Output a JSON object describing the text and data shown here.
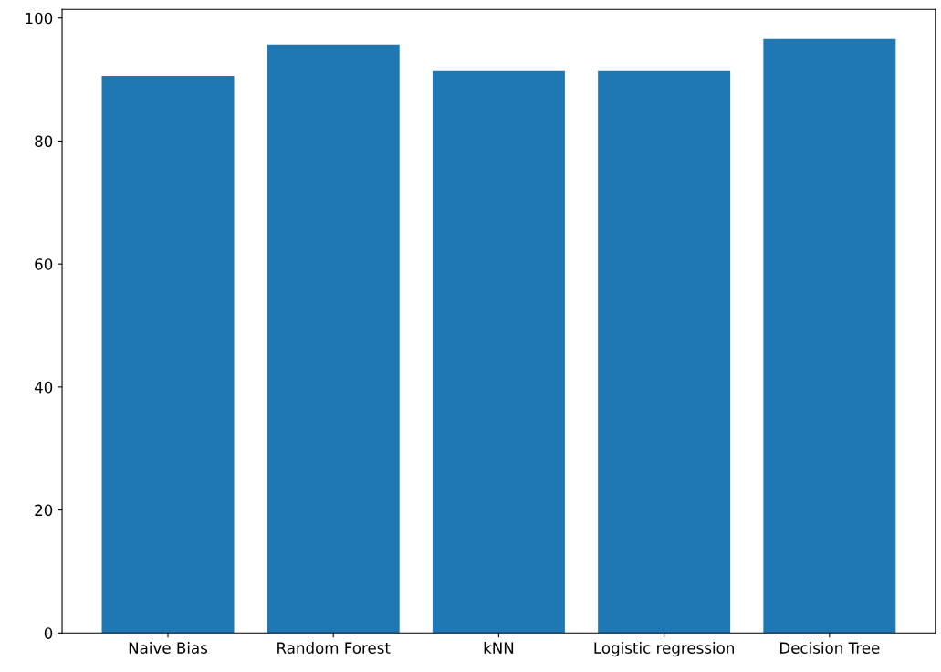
{
  "chart_data": {
    "type": "bar",
    "categories": [
      "Naive Bias",
      "Random Forest",
      "kNN",
      "Logistic regression",
      "Decision Tree"
    ],
    "values": [
      90.6,
      95.7,
      91.4,
      91.4,
      96.6
    ],
    "color": "#1f77b4",
    "ylim": [
      0,
      101.4
    ],
    "yticks": [
      0,
      20,
      40,
      60,
      80,
      100
    ],
    "grid": false
  }
}
